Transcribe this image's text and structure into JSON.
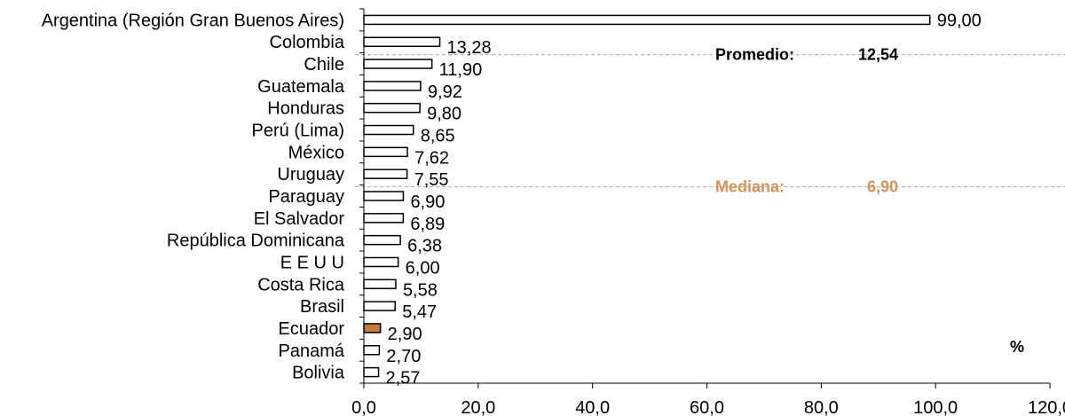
{
  "chart_data": {
    "type": "bar",
    "orientation": "horizontal",
    "categories": [
      "Argentina (Región Gran Buenos Aires)",
      "Colombia",
      "Chile",
      "Guatemala",
      "Honduras",
      "Perú (Lima)",
      "México",
      "Uruguay",
      "Paraguay",
      "El Salvador",
      "República Dominicana",
      "E E U U",
      "Costa Rica",
      "Brasil",
      "Ecuador",
      "Panamá",
      "Bolivia"
    ],
    "values": [
      99.0,
      13.28,
      11.9,
      9.92,
      9.8,
      8.65,
      7.62,
      7.55,
      6.9,
      6.89,
      6.38,
      6.0,
      5.58,
      5.47,
      2.9,
      2.7,
      2.57
    ],
    "value_labels": [
      "99,00",
      "13,28",
      "11,90",
      "9,92",
      "9,80",
      "8,65",
      "7,62",
      "7,55",
      "6,90",
      "6,89",
      "6,38",
      "6,00",
      "5,58",
      "5,47",
      "2,90",
      "2,70",
      "2,57"
    ],
    "highlight_category": "Ecuador",
    "xlim": [
      0,
      120
    ],
    "x_ticks": [
      "0,0",
      "20,0",
      "40,0",
      "60,0",
      "80,0",
      "100,0",
      "120,0"
    ],
    "grid": false,
    "unit_label": "%",
    "reference_lines": [
      {
        "label": "Promedio:",
        "value_label": "12,54",
        "color": "#000000",
        "at_category": "Chile"
      },
      {
        "label": "Mediana:",
        "value_label": "6,90",
        "color": "#D4935A",
        "at_category": "Paraguay"
      }
    ],
    "colors": {
      "bar_fill": "#ffffff",
      "bar_stroke": "#000000",
      "highlight_fill": "#C77A3E",
      "ref_line": "#aaaaaa"
    }
  }
}
